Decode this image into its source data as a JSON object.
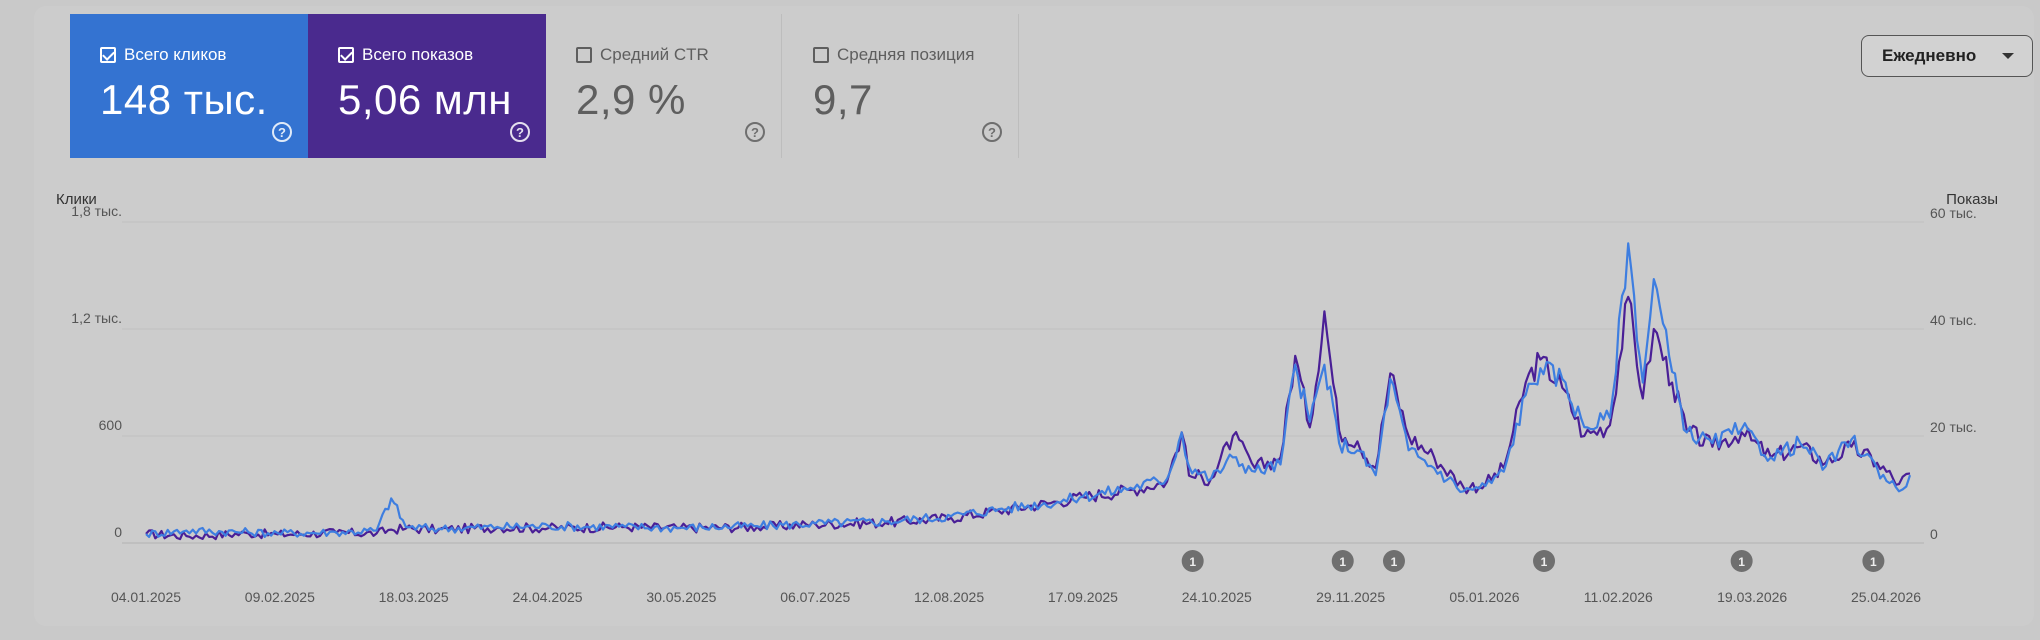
{
  "metrics": [
    {
      "label": "Всего кликов",
      "value": "148 тыс.",
      "checked": true,
      "color": "#3473d1"
    },
    {
      "label": "Всего показов",
      "value": "5,06 млн",
      "checked": true,
      "color": "#4a2a8e"
    },
    {
      "label": "Средний CTR",
      "value": "2,9 %",
      "checked": false
    },
    {
      "label": "Средняя позиция",
      "value": "9,7",
      "checked": false
    }
  ],
  "granularity": {
    "selected": "Ежедневно"
  },
  "chart_data": {
    "type": "line",
    "left_axis": {
      "label": "Клики",
      "ticks": [
        "0",
        "600",
        "1,2 тыс.",
        "1,8 тыс."
      ],
      "range": [
        0,
        1800
      ]
    },
    "right_axis": {
      "label": "Показы",
      "ticks": [
        "0",
        "20 тыс.",
        "40 тыс.",
        "60 тыс."
      ],
      "range": [
        0,
        60000
      ]
    },
    "x_ticks": [
      "04.01.2025",
      "09.02.2025",
      "18.03.2025",
      "24.04.2025",
      "30.05.2025",
      "06.07.2025",
      "12.08.2025",
      "17.09.2025",
      "24.10.2025",
      "29.11.2025",
      "05.01.2026",
      "11.02.2026",
      "19.03.2026",
      "25.04.2026"
    ],
    "annotations": [
      {
        "date": "2025-10-17",
        "label": "1"
      },
      {
        "date": "2025-11-27",
        "label": "1"
      },
      {
        "date": "2025-12-11",
        "label": "1"
      },
      {
        "date": "2026-01-21",
        "label": "1"
      },
      {
        "date": "2026-03-16",
        "label": "1"
      },
      {
        "date": "2026-04-21",
        "label": "1"
      }
    ],
    "series": [
      {
        "name": "Всего кликов",
        "axis": "left",
        "color": "#3e7ee0",
        "points": [
          [
            "2025-01-04",
            50
          ],
          [
            "2025-01-15",
            70
          ],
          [
            "2025-02-01",
            60
          ],
          [
            "2025-02-09",
            55
          ],
          [
            "2025-02-25",
            60
          ],
          [
            "2025-03-08",
            70
          ],
          [
            "2025-03-12",
            250
          ],
          [
            "2025-03-16",
            90
          ],
          [
            "2025-03-25",
            80
          ],
          [
            "2025-04-10",
            90
          ],
          [
            "2025-04-24",
            95
          ],
          [
            "2025-05-15",
            90
          ],
          [
            "2025-05-30",
            85
          ],
          [
            "2025-06-20",
            95
          ],
          [
            "2025-07-06",
            110
          ],
          [
            "2025-07-25",
            120
          ],
          [
            "2025-08-12",
            150
          ],
          [
            "2025-08-25",
            190
          ],
          [
            "2025-09-10",
            230
          ],
          [
            "2025-09-17",
            260
          ],
          [
            "2025-09-30",
            310
          ],
          [
            "2025-10-10",
            360
          ],
          [
            "2025-10-14",
            620
          ],
          [
            "2025-10-16",
            430
          ],
          [
            "2025-10-22",
            360
          ],
          [
            "2025-10-28",
            480
          ],
          [
            "2025-11-03",
            400
          ],
          [
            "2025-11-10",
            440
          ],
          [
            "2025-11-14",
            1000
          ],
          [
            "2025-11-18",
            680
          ],
          [
            "2025-11-22",
            1000
          ],
          [
            "2025-11-26",
            560
          ],
          [
            "2025-12-01",
            520
          ],
          [
            "2025-12-06",
            380
          ],
          [
            "2025-12-10",
            920
          ],
          [
            "2025-12-15",
            520
          ],
          [
            "2025-12-22",
            420
          ],
          [
            "2025-12-30",
            290
          ],
          [
            "2026-01-05",
            320
          ],
          [
            "2026-01-10",
            400
          ],
          [
            "2026-01-16",
            830
          ],
          [
            "2026-01-20",
            980
          ],
          [
            "2026-01-26",
            920
          ],
          [
            "2026-02-01",
            650
          ],
          [
            "2026-02-08",
            700
          ],
          [
            "2026-02-13",
            1680
          ],
          [
            "2026-02-17",
            900
          ],
          [
            "2026-02-20",
            1480
          ],
          [
            "2026-02-25",
            960
          ],
          [
            "2026-03-01",
            620
          ],
          [
            "2026-03-08",
            560
          ],
          [
            "2026-03-16",
            640
          ],
          [
            "2026-03-24",
            480
          ],
          [
            "2026-04-01",
            560
          ],
          [
            "2026-04-08",
            430
          ],
          [
            "2026-04-15",
            580
          ],
          [
            "2026-04-22",
            420
          ],
          [
            "2026-04-28",
            290
          ],
          [
            "2026-05-01",
            380
          ]
        ]
      },
      {
        "name": "Всего показов",
        "axis": "right",
        "color": "#4a1f96",
        "points": [
          [
            "2025-01-04",
            1700
          ],
          [
            "2025-01-15",
            1300
          ],
          [
            "2025-02-01",
            1800
          ],
          [
            "2025-02-09",
            1600
          ],
          [
            "2025-02-25",
            1900
          ],
          [
            "2025-03-08",
            1800
          ],
          [
            "2025-03-12",
            2500
          ],
          [
            "2025-03-16",
            2700
          ],
          [
            "2025-03-25",
            2500
          ],
          [
            "2025-04-10",
            2900
          ],
          [
            "2025-04-24",
            2800
          ],
          [
            "2025-05-15",
            3000
          ],
          [
            "2025-05-30",
            2800
          ],
          [
            "2025-06-20",
            3000
          ],
          [
            "2025-07-06",
            3500
          ],
          [
            "2025-07-25",
            3800
          ],
          [
            "2025-08-12",
            4700
          ],
          [
            "2025-08-25",
            6000
          ],
          [
            "2025-09-10",
            7700
          ],
          [
            "2025-09-17",
            8600
          ],
          [
            "2025-09-30",
            9900
          ],
          [
            "2025-10-10",
            11500
          ],
          [
            "2025-10-14",
            20700
          ],
          [
            "2025-10-16",
            12600
          ],
          [
            "2025-10-22",
            12000
          ],
          [
            "2025-10-28",
            20000
          ],
          [
            "2025-11-03",
            14000
          ],
          [
            "2025-11-10",
            16000
          ],
          [
            "2025-11-14",
            35000
          ],
          [
            "2025-11-18",
            21600
          ],
          [
            "2025-11-22",
            43300
          ],
          [
            "2025-11-26",
            21000
          ],
          [
            "2025-12-01",
            19000
          ],
          [
            "2025-12-06",
            14000
          ],
          [
            "2025-12-10",
            31700
          ],
          [
            "2025-12-15",
            20000
          ],
          [
            "2025-12-22",
            16000
          ],
          [
            "2025-12-30",
            10400
          ],
          [
            "2026-01-05",
            11000
          ],
          [
            "2026-01-10",
            14000
          ],
          [
            "2026-01-16",
            30000
          ],
          [
            "2026-01-20",
            34300
          ],
          [
            "2026-01-26",
            29000
          ],
          [
            "2026-02-01",
            20000
          ],
          [
            "2026-02-08",
            22000
          ],
          [
            "2026-02-13",
            46000
          ],
          [
            "2026-02-17",
            27000
          ],
          [
            "2026-02-20",
            40000
          ],
          [
            "2026-02-25",
            30000
          ],
          [
            "2026-03-01",
            21000
          ],
          [
            "2026-03-08",
            18000
          ],
          [
            "2026-03-16",
            20700
          ],
          [
            "2026-03-24",
            16000
          ],
          [
            "2026-04-01",
            18000
          ],
          [
            "2026-04-08",
            15000
          ],
          [
            "2026-04-15",
            18000
          ],
          [
            "2026-04-22",
            15000
          ],
          [
            "2026-04-28",
            11000
          ],
          [
            "2026-05-01",
            13000
          ]
        ]
      }
    ]
  }
}
